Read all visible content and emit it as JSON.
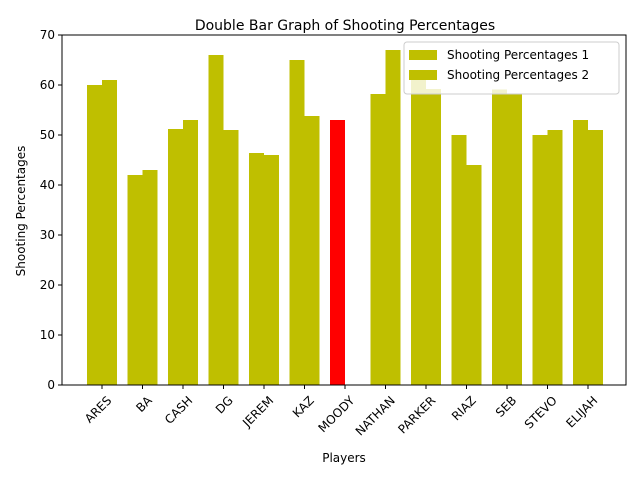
{
  "chart_data": {
    "type": "bar",
    "title": "Double Bar Graph of Shooting Percentages",
    "xlabel": "Players",
    "ylabel": "Shooting Percentages",
    "ylim": [
      0,
      70
    ],
    "yticks": [
      0,
      10,
      20,
      30,
      40,
      50,
      60,
      70
    ],
    "grid": false,
    "legend_position": "top-right",
    "categories": [
      "ARES",
      "BA",
      "CASH",
      "DG",
      "JEREM",
      "KAZ",
      "MOODY",
      "NATHAN",
      "PARKER",
      "RIAZ",
      "SEB",
      "STEVO",
      "ELIJAH"
    ],
    "series": [
      {
        "name": "Shooting Percentages 1",
        "color": "#bfbf00",
        "values": [
          60,
          42,
          51.2,
          66,
          46.4,
          65,
          53,
          58.2,
          61,
          50,
          59.1,
          50,
          53
        ]
      },
      {
        "name": "Shooting Percentages 2",
        "color": "#bfbf00",
        "values": [
          61,
          43,
          53,
          51,
          46,
          53.8,
          0,
          67,
          59.2,
          44,
          58.2,
          51,
          51
        ]
      }
    ],
    "highlight": {
      "category": "MOODY",
      "color": "#ff0000"
    }
  }
}
